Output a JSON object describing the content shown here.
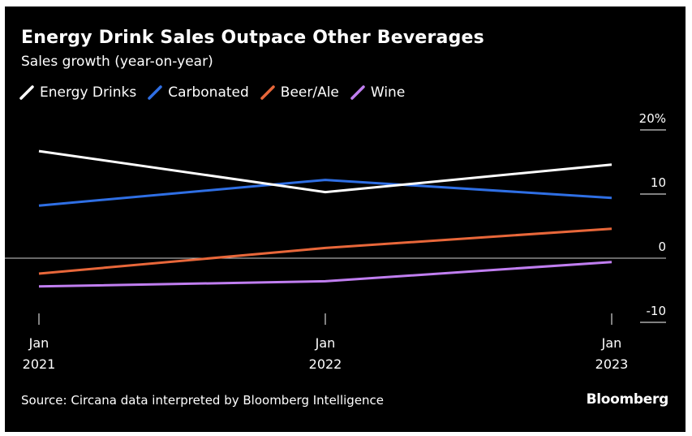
{
  "title": "Energy Drink Sales Outpace Other Beverages",
  "subtitle": "Sales growth (year-on-year)",
  "source": "Source: Circana data interpreted by Bloomberg Intelligence",
  "brand": "Bloomberg",
  "chart_data": {
    "type": "line",
    "title": "Energy Drink Sales Outpace Other Beverages",
    "subtitle": "Sales growth (year-on-year)",
    "xlabel": "",
    "ylabel": "",
    "x": [
      "Jan 2021",
      "Jan 2022",
      "Jan 2023"
    ],
    "x_ticks": [
      {
        "month": "Jan",
        "year": "2021"
      },
      {
        "month": "Jan",
        "year": "2022"
      },
      {
        "month": "Jan",
        "year": "2023"
      }
    ],
    "y_ticks": [
      20,
      10,
      0,
      -10
    ],
    "y_tick_labels": [
      "20%",
      "10",
      "0",
      "-10"
    ],
    "ylim": [
      -10,
      20
    ],
    "grid": false,
    "axis_side": "right",
    "legend_position": "top-left",
    "series": [
      {
        "name": "Energy Drinks",
        "color": "#ffffff",
        "values": [
          16.7,
          10.3,
          14.6
        ]
      },
      {
        "name": "Carbonated",
        "color": "#2f6fe4",
        "values": [
          8.2,
          12.2,
          9.4
        ]
      },
      {
        "name": "Beer/Ale",
        "color": "#e8673a",
        "values": [
          -2.4,
          1.6,
          4.6
        ]
      },
      {
        "name": "Wine",
        "color": "#c07ef0",
        "values": [
          -4.4,
          -3.6,
          -0.6
        ]
      }
    ]
  }
}
